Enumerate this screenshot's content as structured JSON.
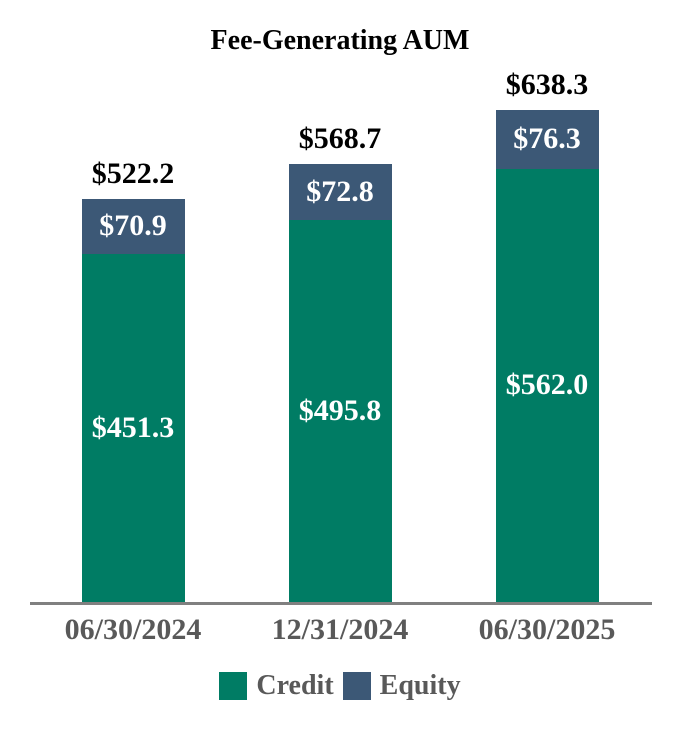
{
  "title": "Fee-Generating AUM",
  "colors": {
    "credit": "#007C64",
    "equity": "#3C5876",
    "axis_line": "#808080",
    "category_text": "#595959",
    "legend_text": "#595959",
    "total_label_text": "#000000",
    "segment_label_text": "#FFFFFF",
    "background": "#FFFFFF"
  },
  "chart_data": {
    "type": "bar",
    "stacked": true,
    "title": "Fee-Generating AUM",
    "categories": [
      "06/30/2024",
      "12/31/2024",
      "06/30/2025"
    ],
    "series": [
      {
        "name": "Credit",
        "color": "#007C64",
        "values": [
          451.3,
          495.8,
          562.0
        ],
        "labels": [
          "$451.3",
          "$495.8",
          "$562.0"
        ]
      },
      {
        "name": "Equity",
        "color": "#3C5876",
        "values": [
          70.9,
          72.8,
          76.3
        ],
        "labels": [
          "$70.9",
          "$72.8",
          "$76.3"
        ]
      }
    ],
    "totals": [
      522.2,
      568.7,
      638.3
    ],
    "total_labels": [
      "$522.2",
      "$568.7",
      "$638.3"
    ],
    "legend": [
      {
        "label": "Credit",
        "color": "#007C64"
      },
      {
        "label": "Equity",
        "color": "#3C5876"
      }
    ],
    "legend_position": "bottom",
    "grid": false,
    "y_axis_visible": false,
    "x_axis_line": true
  }
}
